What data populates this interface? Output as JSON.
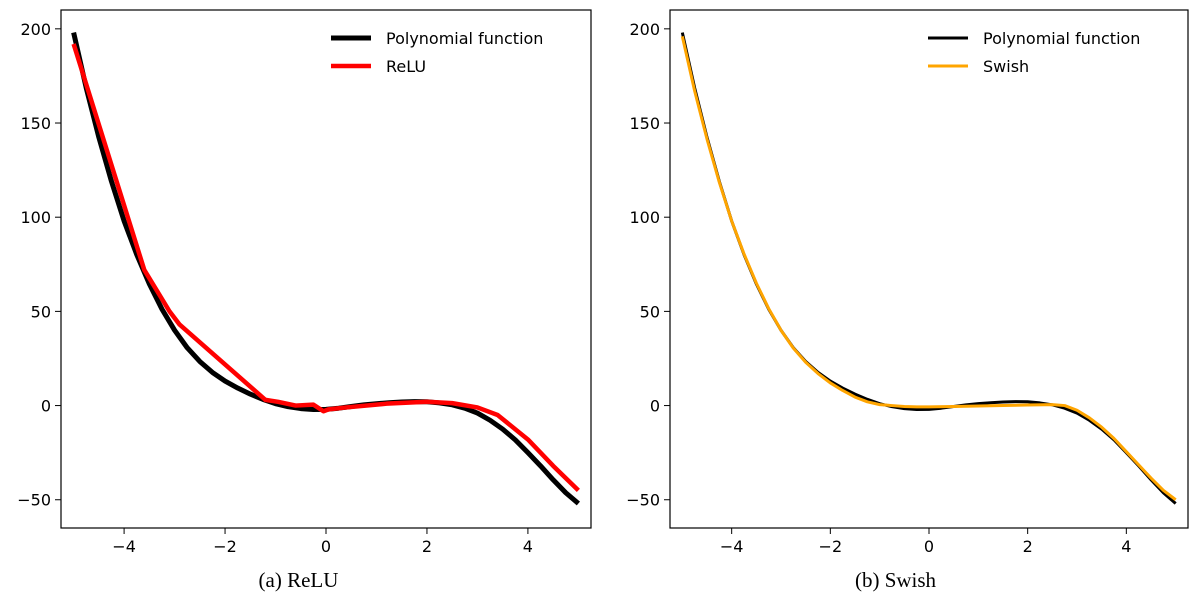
{
  "chart_data": [
    {
      "type": "line",
      "caption": "(a) ReLU",
      "xlim": [
        -5.25,
        5.25
      ],
      "ylim": [
        -65,
        210
      ],
      "xticks": [
        -4,
        -2,
        0,
        2,
        4
      ],
      "yticks": [
        -50,
        0,
        50,
        100,
        150,
        200
      ],
      "xtick_labels": [
        "−4",
        "−2",
        "0",
        "2",
        "4"
      ],
      "ytick_labels": [
        "−50",
        "0",
        "50",
        "100",
        "150",
        "200"
      ],
      "grid": false,
      "legend_position": "top-right",
      "series": [
        {
          "name": "Polynomial function",
          "color": "#000000",
          "x": [
            -5,
            -4.75,
            -4.5,
            -4.25,
            -4,
            -3.75,
            -3.5,
            -3.25,
            -3,
            -2.75,
            -2.5,
            -2.25,
            -2,
            -1.75,
            -1.5,
            -1.25,
            -1,
            -0.75,
            -0.5,
            -0.25,
            0,
            0.25,
            0.5,
            0.75,
            1,
            1.25,
            1.5,
            1.75,
            2,
            2.25,
            2.5,
            2.75,
            3,
            3.25,
            3.5,
            3.75,
            4,
            4.25,
            4.5,
            4.75,
            5
          ],
          "y": [
            198,
            168.6,
            142.4,
            119.0,
            98,
            80.2,
            64.6,
            51.2,
            40,
            30.7,
            23.4,
            17.6,
            13,
            9.3,
            6.1,
            3.3,
            1,
            -0.6,
            -1.6,
            -2.1,
            -2,
            -1.4,
            -0.5,
            0.4,
            1,
            1.5,
            1.9,
            2.1,
            2,
            1.4,
            0.4,
            -1.4,
            -4,
            -7.8,
            -12.5,
            -18.2,
            -25,
            -32.0,
            -39.4,
            -46.3,
            -52
          ]
        },
        {
          "name": "ReLU",
          "color": "#ff0000",
          "x": [
            -5,
            -3.6,
            -3.1,
            -2.9,
            -1.2,
            -0.95,
            -0.6,
            -0.25,
            -0.05,
            0.05,
            0.4,
            1.2,
            2.0,
            2.5,
            3.0,
            3.4,
            4.0,
            4.5,
            5.0
          ],
          "y": [
            192,
            72,
            50,
            43,
            3,
            2,
            0,
            0.5,
            -3,
            -2,
            -1,
            1,
            2,
            1.3,
            -1,
            -5,
            -18,
            -32,
            -45
          ]
        }
      ]
    },
    {
      "type": "line",
      "caption": "(b) Swish",
      "xlim": [
        -5.25,
        5.25
      ],
      "ylim": [
        -65,
        210
      ],
      "xticks": [
        -4,
        -2,
        0,
        2,
        4
      ],
      "yticks": [
        -50,
        0,
        50,
        100,
        150,
        200
      ],
      "xtick_labels": [
        "−4",
        "−2",
        "0",
        "2",
        "4"
      ],
      "ytick_labels": [
        "−50",
        "0",
        "50",
        "100",
        "150",
        "200"
      ],
      "grid": false,
      "legend_position": "top-right",
      "series": [
        {
          "name": "Polynomial function",
          "color": "#000000",
          "x": [
            -5,
            -4.75,
            -4.5,
            -4.25,
            -4,
            -3.75,
            -3.5,
            -3.25,
            -3,
            -2.75,
            -2.5,
            -2.25,
            -2,
            -1.75,
            -1.5,
            -1.25,
            -1,
            -0.75,
            -0.5,
            -0.25,
            0,
            0.25,
            0.5,
            0.75,
            1,
            1.25,
            1.5,
            1.75,
            2,
            2.25,
            2.5,
            2.75,
            3,
            3.25,
            3.5,
            3.75,
            4,
            4.25,
            4.5,
            4.75,
            5
          ],
          "y": [
            198,
            168.6,
            142.4,
            119.0,
            98,
            80.2,
            64.6,
            51.2,
            40,
            30.7,
            23.4,
            17.6,
            13,
            9.3,
            6.1,
            3.3,
            1,
            -0.6,
            -1.6,
            -2.1,
            -2,
            -1.4,
            -0.5,
            0.4,
            1,
            1.5,
            1.9,
            2.1,
            2,
            1.4,
            0.4,
            -1.4,
            -4,
            -7.8,
            -12.5,
            -18.2,
            -25,
            -32.0,
            -39.4,
            -46.3,
            -52
          ]
        },
        {
          "name": "Swish",
          "color": "#ffa500",
          "x": [
            -5,
            -4.75,
            -4.5,
            -4.25,
            -4,
            -3.75,
            -3.5,
            -3.25,
            -3,
            -2.75,
            -2.5,
            -2.25,
            -2,
            -1.75,
            -1.5,
            -1.25,
            -1,
            -0.75,
            -0.5,
            -0.25,
            0,
            0.5,
            1,
            1.5,
            2,
            2.5,
            2.75,
            3,
            3.25,
            3.5,
            3.75,
            4,
            4.25,
            4.5,
            4.75,
            5
          ],
          "y": [
            196,
            167,
            141.5,
            118.5,
            98,
            80.5,
            65,
            51.5,
            40,
            30.5,
            23,
            17,
            12,
            8,
            4.5,
            2,
            0.5,
            0,
            -0.5,
            -0.7,
            -0.7,
            -0.5,
            -0.2,
            0,
            0.3,
            0.5,
            0,
            -2.5,
            -6.5,
            -11.5,
            -17.5,
            -24.5,
            -31.5,
            -38.5,
            -45,
            -50
          ]
        }
      ]
    }
  ]
}
